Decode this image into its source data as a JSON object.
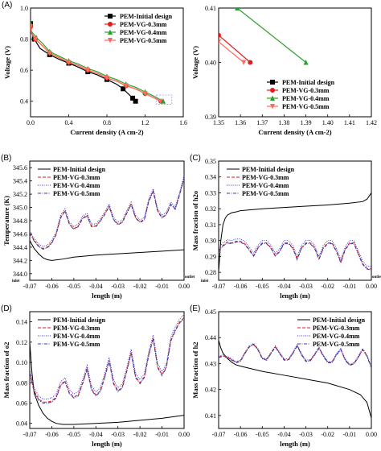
{
  "colors": {
    "black": "#000000",
    "red": "#e41a1c",
    "blue": "#3333cc",
    "green": "#2ca02c",
    "orange": "#ff6a5a",
    "darkblue": "#3b3b9e",
    "zoom": "#9999ff"
  },
  "chart_data": [
    {
      "id": "A",
      "letter": "(A)",
      "type": "line",
      "xlabel": "Current density (A cm-2)",
      "ylabel": "Voltage (V)",
      "xlim": [
        0,
        1.6
      ],
      "ylim": [
        0.3,
        1.0
      ],
      "xticks": [
        "0.0",
        "0.4",
        "0.8",
        "1.2",
        "1.6"
      ],
      "yticks": [
        "0.4",
        "0.6",
        "0.8",
        "1.0"
      ],
      "series": [
        {
          "name": "PEM-Initial design",
          "marker": "square",
          "color": "black",
          "x": [
            0.0,
            0.01,
            0.04,
            0.1,
            0.2,
            0.3,
            0.4,
            0.5,
            0.6,
            0.7,
            0.8,
            0.9,
            0.97,
            1.02,
            1.07,
            1.1
          ],
          "y": [
            0.9,
            0.84,
            0.8,
            0.74,
            0.7,
            0.67,
            0.645,
            0.62,
            0.59,
            0.57,
            0.54,
            0.51,
            0.48,
            0.45,
            0.42,
            0.4
          ]
        },
        {
          "name": "PEM-VG-0.3mm",
          "marker": "circle",
          "color": "red",
          "x": [
            0.0,
            0.01,
            0.05,
            0.12,
            0.2,
            0.3,
            0.4,
            0.5,
            0.6,
            0.7,
            0.8,
            0.9,
            1.0,
            1.1,
            1.2,
            1.3,
            1.365
          ],
          "y": [
            0.88,
            0.84,
            0.8,
            0.76,
            0.71,
            0.68,
            0.65,
            0.63,
            0.6,
            0.58,
            0.55,
            0.53,
            0.5,
            0.48,
            0.45,
            0.42,
            0.4
          ]
        },
        {
          "name": "PEM-VG-0.4mm",
          "marker": "triangle",
          "color": "green",
          "x": [
            0.0,
            0.01,
            0.06,
            0.13,
            0.2,
            0.3,
            0.4,
            0.5,
            0.6,
            0.7,
            0.8,
            0.9,
            1.0,
            1.1,
            1.2,
            1.3,
            1.39
          ],
          "y": [
            0.9,
            0.85,
            0.81,
            0.77,
            0.72,
            0.69,
            0.66,
            0.64,
            0.61,
            0.59,
            0.56,
            0.54,
            0.51,
            0.49,
            0.46,
            0.43,
            0.4
          ]
        },
        {
          "name": "PEM-VG-0.5mm",
          "marker": "tri-down",
          "color": "orange",
          "x": [
            0.0,
            0.01,
            0.05,
            0.12,
            0.2,
            0.3,
            0.4,
            0.5,
            0.6,
            0.7,
            0.8,
            0.9,
            1.0,
            1.1,
            1.2,
            1.3,
            1.36
          ],
          "y": [
            0.88,
            0.84,
            0.8,
            0.76,
            0.71,
            0.68,
            0.65,
            0.63,
            0.6,
            0.58,
            0.55,
            0.53,
            0.5,
            0.48,
            0.45,
            0.42,
            0.4
          ]
        }
      ],
      "zoom_box": {
        "x": [
          1.32,
          1.48
        ],
        "y": [
          0.38,
          0.44
        ]
      }
    },
    {
      "id": "A2",
      "letter": "",
      "type": "line",
      "xlabel": "Current density (A cm-2)",
      "ylabel": "Voltage (V)",
      "xlim": [
        1.35,
        1.42
      ],
      "ylim": [
        0.39,
        0.41
      ],
      "xticks": [
        "1.35",
        "1.36",
        "1.37",
        "1.38",
        "1.39",
        "1.40",
        "1.41",
        "1.42"
      ],
      "yticks": [
        "0.39",
        "0.40",
        "0.41"
      ],
      "series": [
        {
          "name": "PEM-Initial design",
          "marker": "square",
          "color": "black",
          "x": [],
          "y": []
        },
        {
          "name": "PEM-VG-0.3mm",
          "marker": "circle",
          "color": "red",
          "x": [
            1.35,
            1.3645
          ],
          "y": [
            0.405,
            0.4
          ]
        },
        {
          "name": "PEM-VG-0.4mm",
          "marker": "triangle",
          "color": "green",
          "x": [
            1.3585,
            1.39
          ],
          "y": [
            0.41,
            0.4
          ]
        },
        {
          "name": "PEM-VG-0.5mm",
          "marker": "tri-down",
          "color": "orange",
          "x": [
            1.35,
            1.3615
          ],
          "y": [
            0.4038,
            0.4
          ]
        }
      ]
    },
    {
      "id": "B",
      "letter": "(B)",
      "type": "line",
      "xlabel": "length (m)",
      "ylabel": "Temperature (K)",
      "xlim": [
        -0.07,
        0.0
      ],
      "ylim": [
        343.9,
        345.7
      ],
      "xticks": [
        "-0.07",
        "-0.06",
        "-0.05",
        "-0.04",
        "-0.03",
        "-0.02",
        "-0.01",
        "0.00"
      ],
      "yticks": [
        "344.0",
        "344.2",
        "344.4",
        "344.6",
        "344.8",
        "345.0",
        "345.2",
        "345.4",
        "345.6"
      ],
      "inlet": "inlet",
      "outlet": "outlet",
      "series": [
        {
          "name": "PEM-Initial design",
          "style": "solid",
          "color": "black",
          "base": "tempBase"
        },
        {
          "name": "PEM-VG-0.3mm",
          "style": "dash",
          "color": "red",
          "base": "tempVG",
          "off": 0
        },
        {
          "name": "PEM-VG-0.4mm",
          "style": "dot",
          "color": "blue",
          "base": "tempVG",
          "off": 0.03
        },
        {
          "name": "PEM-VG-0.5mm",
          "style": "dashdot",
          "color": "darkblue",
          "base": "tempVG",
          "off": -0.01
        }
      ]
    },
    {
      "id": "C",
      "letter": "(C)",
      "type": "line",
      "xlabel": "length (m)",
      "ylabel": "Mass fraction of h2o",
      "xlim": [
        -0.07,
        0.0
      ],
      "ylim": [
        0.275,
        0.35
      ],
      "xticks": [
        "-0.07",
        "-0.06",
        "-0.05",
        "-0.04",
        "-0.03",
        "-0.02",
        "-0.01",
        "0.00"
      ],
      "yticks": [
        "0.28",
        "0.29",
        "0.30",
        "0.31",
        "0.32",
        "0.33",
        "0.34",
        "0.35"
      ],
      "inlet": "inlet",
      "outlet": "outlet",
      "series": [
        {
          "name": "PEM-Initial design",
          "style": "solid",
          "color": "black",
          "base": "h2oBase"
        },
        {
          "name": "PEM-VG-0.3mm",
          "style": "dash",
          "color": "red",
          "base": "h2oVG",
          "off": 0
        },
        {
          "name": "PEM-VG-0.4mm",
          "style": "dot",
          "color": "blue",
          "base": "h2oVG",
          "off": 0.0015
        },
        {
          "name": "PEM-VG-0.5mm",
          "style": "dashdot",
          "color": "darkblue",
          "base": "h2oVG",
          "off": -0.0005
        }
      ]
    },
    {
      "id": "D",
      "letter": "(D)",
      "type": "line",
      "xlabel": "length (m)",
      "ylabel": "Mass fraction of o2",
      "xlim": [
        -0.07,
        0.0
      ],
      "ylim": [
        0.035,
        0.15
      ],
      "xticks": [
        "-0.07",
        "-0.06",
        "-0.05",
        "-0.04",
        "-0.03",
        "-0.02",
        "-0.01",
        "0.00"
      ],
      "yticks": [
        "0.04",
        "0.06",
        "0.08",
        "0.10",
        "0.12",
        "0.14"
      ],
      "series": [
        {
          "name": "PEM-Initial design",
          "style": "solid",
          "color": "black",
          "base": "o2Base"
        },
        {
          "name": "PEM-VG-0.3mm",
          "style": "dash",
          "color": "red",
          "base": "o2VG",
          "off": 0
        },
        {
          "name": "PEM-VG-0.4mm",
          "style": "dot",
          "color": "blue",
          "base": "o2VG",
          "off": 0.003
        },
        {
          "name": "PEM-VG-0.5mm",
          "style": "dashdot",
          "color": "darkblue",
          "base": "o2VG",
          "off": -0.001
        }
      ]
    },
    {
      "id": "E",
      "letter": "(E)",
      "type": "line",
      "xlabel": "length (m)",
      "ylabel": "Mass fraction of h2",
      "xlim": [
        -0.07,
        0.0
      ],
      "ylim": [
        0.405,
        0.45
      ],
      "xticks": [
        "-0.07",
        "-0.06",
        "-0.05",
        "-0.04",
        "-0.03",
        "-0.02",
        "-0.01",
        "0.00"
      ],
      "yticks": [
        "0.41",
        "0.42",
        "0.43",
        "0.44",
        "0.45"
      ],
      "series": [
        {
          "name": "PEM-Initial design",
          "style": "solid",
          "color": "black",
          "base": "h2Base"
        },
        {
          "name": "PEM-VG-0.3mm",
          "style": "dash",
          "color": "red",
          "base": "h2VG",
          "off": 0
        },
        {
          "name": "PEM-VG-0.4mm",
          "style": "dot",
          "color": "blue",
          "base": "h2VG",
          "off": 0.0003
        },
        {
          "name": "PEM-VG-0.5mm",
          "style": "dashdot",
          "color": "darkblue",
          "base": "h2VG",
          "off": -0.0002
        }
      ]
    }
  ],
  "profiles": {
    "tempBase": {
      "x": [
        -0.07,
        -0.068,
        -0.066,
        -0.064,
        -0.062,
        -0.06,
        -0.055,
        -0.05,
        -0.04,
        -0.03,
        -0.02,
        -0.01,
        0.0
      ],
      "y": [
        344.5,
        344.38,
        344.3,
        344.24,
        344.21,
        344.2,
        344.22,
        344.25,
        344.28,
        344.3,
        344.32,
        344.34,
        344.36
      ]
    },
    "tempVG": {
      "x": [
        -0.07,
        -0.068,
        -0.066,
        -0.064,
        -0.062,
        -0.06,
        -0.058,
        -0.056,
        -0.054,
        -0.052,
        -0.05,
        -0.048,
        -0.046,
        -0.044,
        -0.042,
        -0.04,
        -0.038,
        -0.036,
        -0.034,
        -0.032,
        -0.03,
        -0.028,
        -0.026,
        -0.024,
        -0.022,
        -0.02,
        -0.018,
        -0.016,
        -0.014,
        -0.012,
        -0.01,
        -0.008,
        -0.006,
        -0.004,
        -0.002,
        0.0
      ],
      "y": [
        344.62,
        344.5,
        344.42,
        344.38,
        344.4,
        344.47,
        344.6,
        344.85,
        344.95,
        344.75,
        344.68,
        344.72,
        344.84,
        344.88,
        344.72,
        344.72,
        344.8,
        344.9,
        345.02,
        344.82,
        344.75,
        344.78,
        344.92,
        345.05,
        344.85,
        344.78,
        344.82,
        345.1,
        345.25,
        344.95,
        344.85,
        344.9,
        345.05,
        344.98,
        345.2,
        345.45
      ]
    },
    "h2oBase": {
      "x": [
        -0.07,
        -0.069,
        -0.068,
        -0.067,
        -0.066,
        -0.064,
        -0.062,
        -0.06,
        -0.05,
        -0.04,
        -0.03,
        -0.02,
        -0.01,
        -0.004,
        -0.002,
        -0.001,
        0.0
      ],
      "y": [
        0.28,
        0.3,
        0.31,
        0.314,
        0.316,
        0.3175,
        0.318,
        0.3188,
        0.32,
        0.3208,
        0.3216,
        0.3224,
        0.3235,
        0.3245,
        0.326,
        0.328,
        0.33
      ]
    },
    "h2oVG": {
      "x": [
        -0.07,
        -0.068,
        -0.066,
        -0.064,
        -0.062,
        -0.06,
        -0.058,
        -0.056,
        -0.054,
        -0.052,
        -0.05,
        -0.048,
        -0.046,
        -0.044,
        -0.042,
        -0.04,
        -0.038,
        -0.036,
        -0.034,
        -0.032,
        -0.03,
        -0.028,
        -0.026,
        -0.024,
        -0.022,
        -0.02,
        -0.018,
        -0.016,
        -0.014,
        -0.012,
        -0.01,
        -0.008,
        -0.006,
        -0.004,
        -0.002,
        0.0
      ],
      "y": [
        0.294,
        0.297,
        0.299,
        0.2985,
        0.2995,
        0.2995,
        0.298,
        0.2945,
        0.2905,
        0.2955,
        0.2985,
        0.2985,
        0.2955,
        0.2905,
        0.2935,
        0.2985,
        0.2985,
        0.2955,
        0.2885,
        0.2955,
        0.2985,
        0.2985,
        0.2955,
        0.2885,
        0.2955,
        0.2985,
        0.2985,
        0.2935,
        0.2865,
        0.2945,
        0.2985,
        0.2985,
        0.292,
        0.2855,
        0.2825,
        0.282
      ]
    },
    "o2Base": {
      "x": [
        -0.07,
        -0.069,
        -0.068,
        -0.066,
        -0.064,
        -0.062,
        -0.06,
        -0.058,
        -0.055,
        -0.05,
        -0.04,
        -0.03,
        -0.02,
        -0.01,
        0.0
      ],
      "y": [
        0.12,
        0.09,
        0.07,
        0.058,
        0.05,
        0.045,
        0.042,
        0.04,
        0.039,
        0.039,
        0.04,
        0.041,
        0.043,
        0.045,
        0.048
      ]
    },
    "o2VG": {
      "x": [
        -0.07,
        -0.068,
        -0.066,
        -0.064,
        -0.062,
        -0.06,
        -0.058,
        -0.056,
        -0.054,
        -0.052,
        -0.05,
        -0.048,
        -0.046,
        -0.044,
        -0.042,
        -0.04,
        -0.038,
        -0.036,
        -0.034,
        -0.032,
        -0.03,
        -0.028,
        -0.026,
        -0.024,
        -0.022,
        -0.02,
        -0.018,
        -0.016,
        -0.014,
        -0.012,
        -0.01,
        -0.008,
        -0.006,
        -0.004,
        -0.002,
        0.0
      ],
      "y": [
        0.09,
        0.072,
        0.064,
        0.061,
        0.061,
        0.062,
        0.066,
        0.078,
        0.082,
        0.07,
        0.066,
        0.068,
        0.08,
        0.094,
        0.074,
        0.068,
        0.072,
        0.086,
        0.102,
        0.08,
        0.072,
        0.076,
        0.092,
        0.11,
        0.086,
        0.08,
        0.086,
        0.108,
        0.124,
        0.096,
        0.088,
        0.096,
        0.122,
        0.132,
        0.14,
        0.144
      ]
    },
    "h2Base": {
      "x": [
        -0.07,
        -0.069,
        -0.068,
        -0.066,
        -0.064,
        -0.062,
        -0.06,
        -0.055,
        -0.05,
        -0.04,
        -0.03,
        -0.02,
        -0.01,
        -0.005,
        -0.002,
        -0.001,
        0.0
      ],
      "y": [
        0.439,
        0.436,
        0.434,
        0.432,
        0.4305,
        0.4295,
        0.429,
        0.428,
        0.427,
        0.4255,
        0.424,
        0.4225,
        0.42,
        0.418,
        0.415,
        0.412,
        0.409
      ]
    },
    "h2VG": {
      "x": [
        -0.07,
        -0.068,
        -0.066,
        -0.064,
        -0.062,
        -0.06,
        -0.058,
        -0.056,
        -0.054,
        -0.052,
        -0.05,
        -0.048,
        -0.046,
        -0.044,
        -0.042,
        -0.04,
        -0.038,
        -0.036,
        -0.034,
        -0.032,
        -0.03,
        -0.028,
        -0.026,
        -0.024,
        -0.022,
        -0.02,
        -0.018,
        -0.016,
        -0.014,
        -0.012,
        -0.01,
        -0.008,
        -0.006,
        -0.004,
        -0.002,
        0.0
      ],
      "y": [
        0.4325,
        0.433,
        0.4325,
        0.4315,
        0.4305,
        0.431,
        0.434,
        0.4365,
        0.4375,
        0.4355,
        0.432,
        0.4315,
        0.434,
        0.4365,
        0.434,
        0.4315,
        0.4315,
        0.434,
        0.437,
        0.4335,
        0.431,
        0.4312,
        0.4335,
        0.436,
        0.433,
        0.4305,
        0.4305,
        0.4335,
        0.4355,
        0.4315,
        0.4295,
        0.43,
        0.4325,
        0.4355,
        0.433,
        0.4285
      ]
    }
  }
}
